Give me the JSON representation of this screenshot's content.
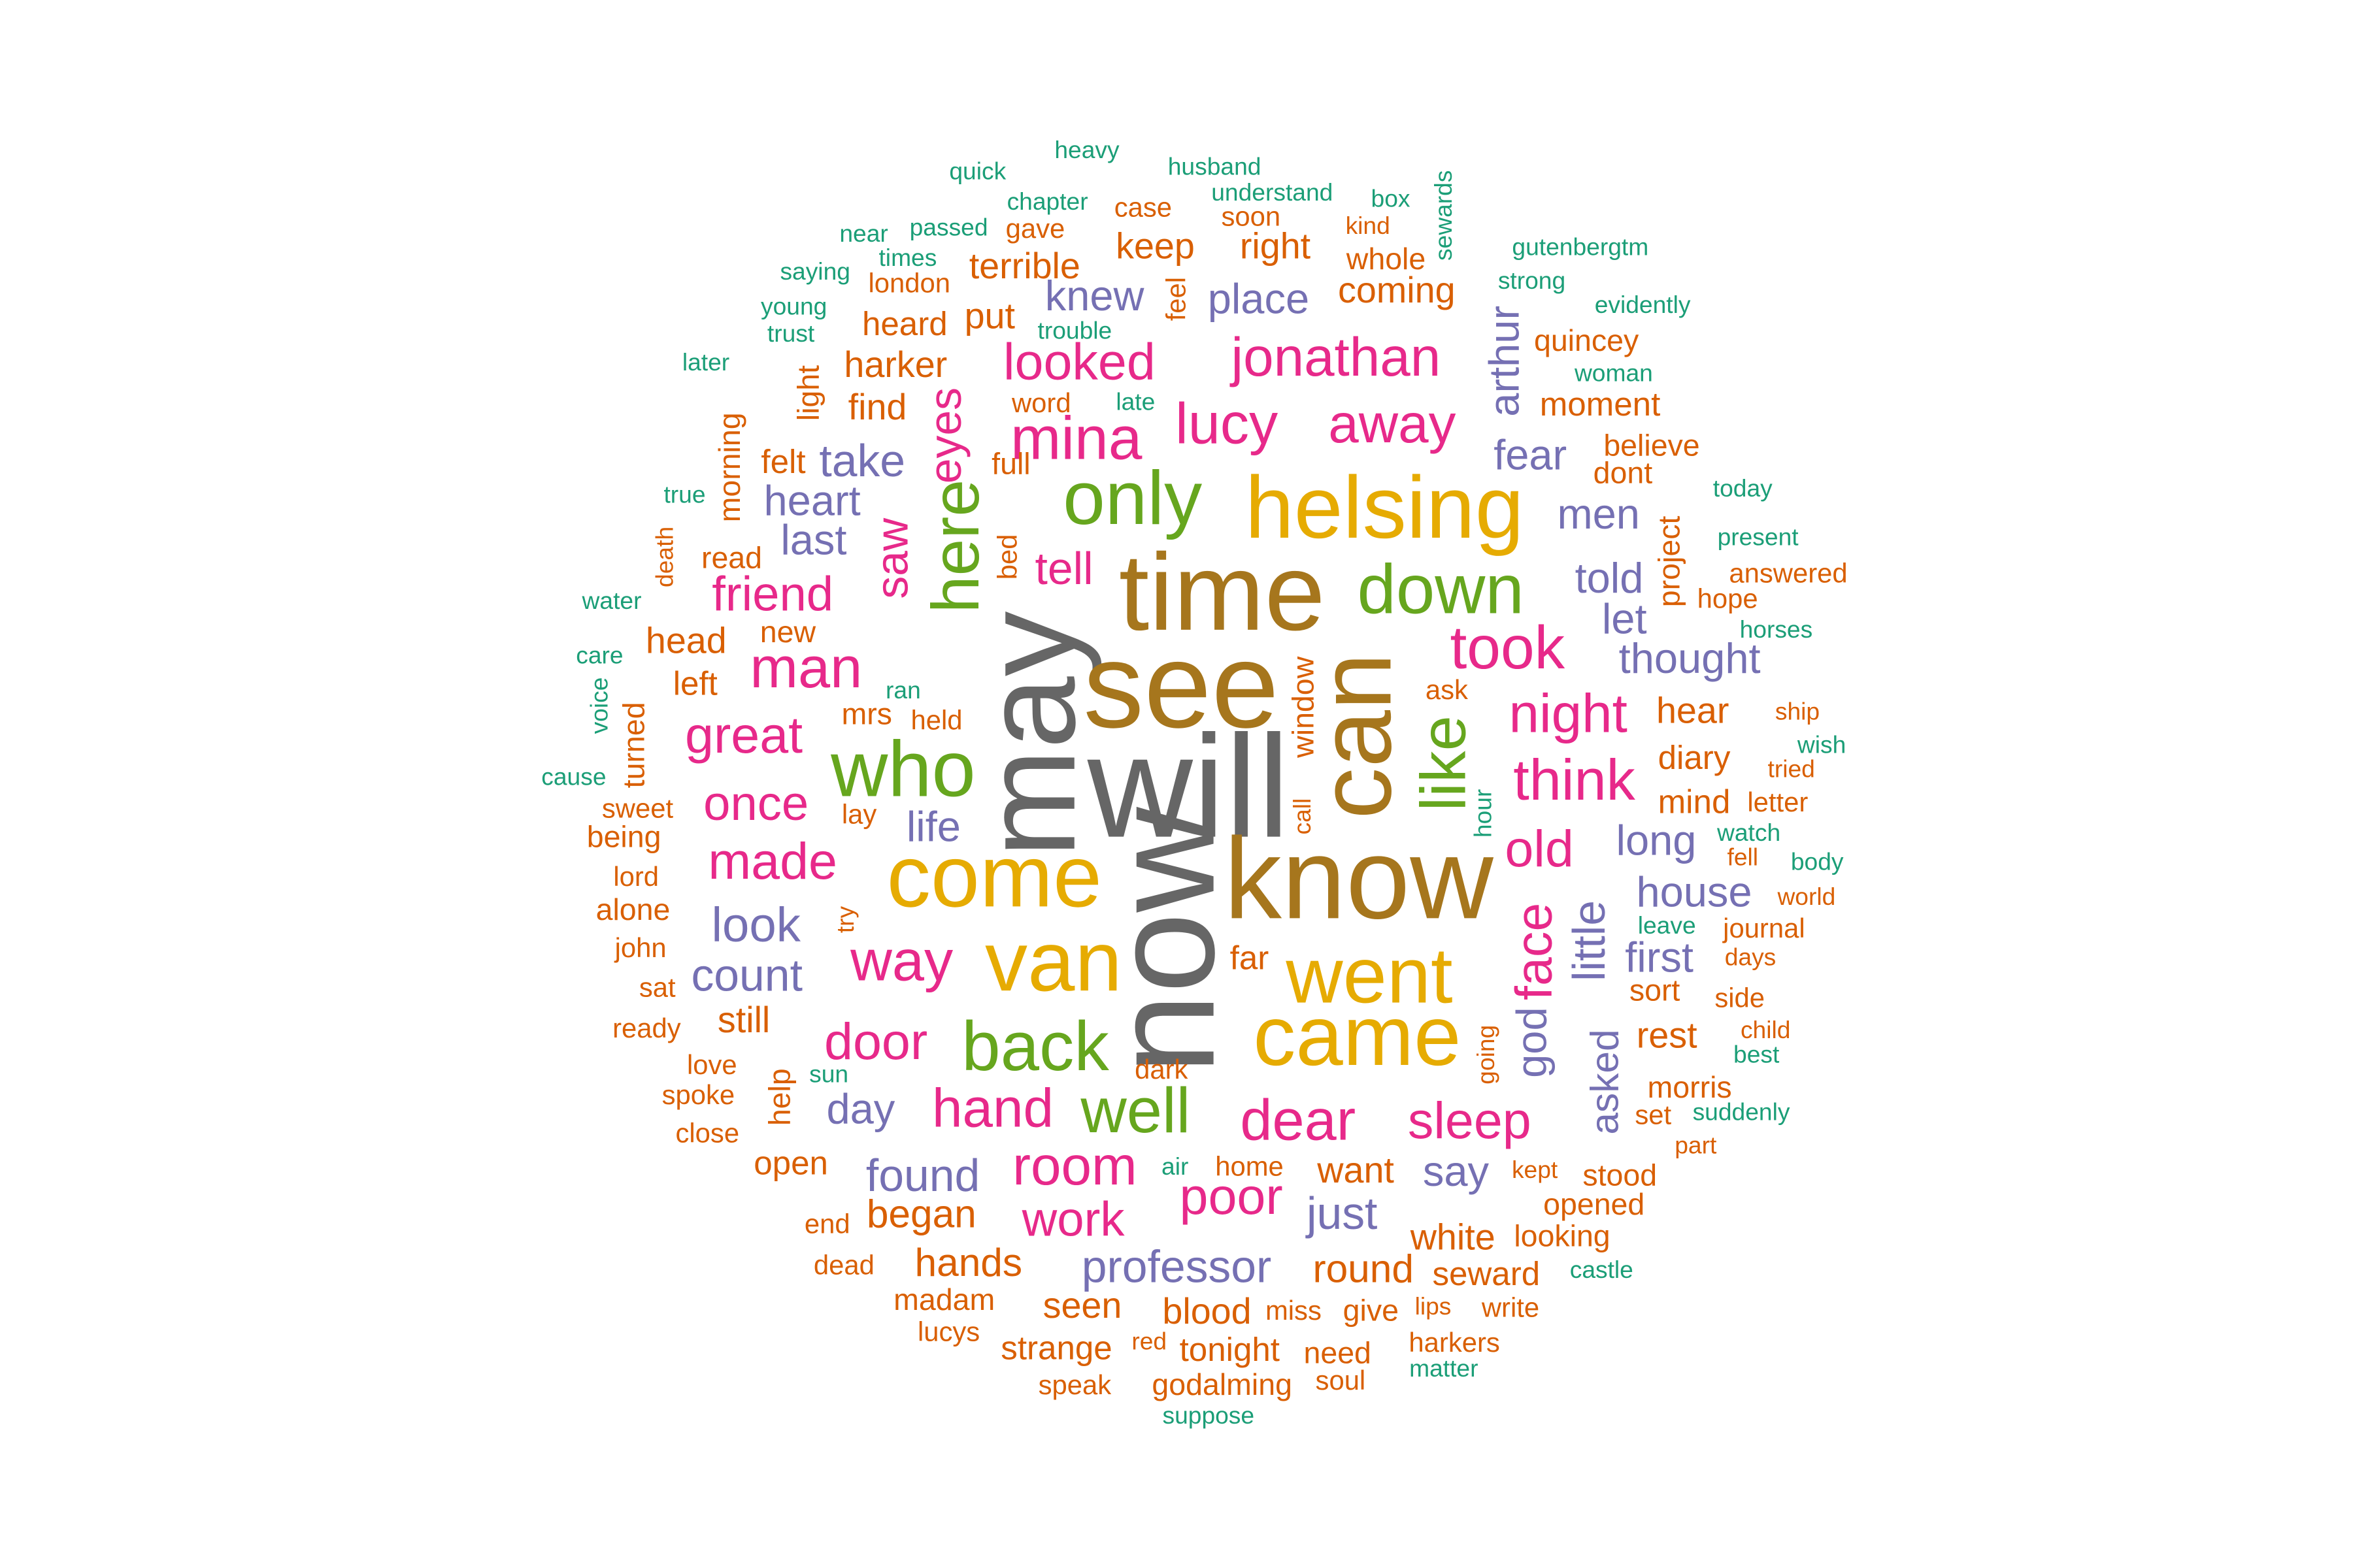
{
  "palette": {
    "gray": "#666666",
    "olive": "#a6761d",
    "gold": "#e6ab02",
    "green": "#66a61e",
    "pink": "#e7298a",
    "purple": "#7570b3",
    "orange": "#d95f02",
    "teal": "#1b9e77"
  },
  "words": [
    {
      "text": "will",
      "color": "gray"
    },
    {
      "text": "now",
      "color": "gray"
    },
    {
      "text": "may",
      "color": "gray"
    },
    {
      "text": "see",
      "color": "olive"
    },
    {
      "text": "know",
      "color": "olive"
    },
    {
      "text": "time",
      "color": "olive"
    },
    {
      "text": "can",
      "color": "olive"
    },
    {
      "text": "come",
      "color": "gold"
    },
    {
      "text": "van",
      "color": "gold"
    },
    {
      "text": "came",
      "color": "gold"
    },
    {
      "text": "helsing",
      "color": "gold"
    },
    {
      "text": "went",
      "color": "gold"
    },
    {
      "text": "who",
      "color": "green"
    },
    {
      "text": "back",
      "color": "green"
    },
    {
      "text": "only",
      "color": "green"
    },
    {
      "text": "down",
      "color": "green"
    },
    {
      "text": "like",
      "color": "green"
    },
    {
      "text": "well",
      "color": "green"
    },
    {
      "text": "here",
      "color": "green"
    },
    {
      "text": "mina",
      "color": "pink"
    },
    {
      "text": "lucy",
      "color": "pink"
    },
    {
      "text": "jonathan",
      "color": "pink"
    },
    {
      "text": "away",
      "color": "pink"
    },
    {
      "text": "looked",
      "color": "pink"
    },
    {
      "text": "eyes",
      "color": "pink"
    },
    {
      "text": "saw",
      "color": "pink"
    },
    {
      "text": "tell",
      "color": "pink"
    },
    {
      "text": "friend",
      "color": "pink"
    },
    {
      "text": "man",
      "color": "pink"
    },
    {
      "text": "took",
      "color": "pink"
    },
    {
      "text": "night",
      "color": "pink"
    },
    {
      "text": "think",
      "color": "pink"
    },
    {
      "text": "great",
      "color": "pink"
    },
    {
      "text": "once",
      "color": "pink"
    },
    {
      "text": "made",
      "color": "pink"
    },
    {
      "text": "old",
      "color": "pink"
    },
    {
      "text": "face",
      "color": "pink"
    },
    {
      "text": "way",
      "color": "pink"
    },
    {
      "text": "door",
      "color": "pink"
    },
    {
      "text": "hand",
      "color": "pink"
    },
    {
      "text": "dear",
      "color": "pink"
    },
    {
      "text": "sleep",
      "color": "pink"
    },
    {
      "text": "room",
      "color": "pink"
    },
    {
      "text": "poor",
      "color": "pink"
    },
    {
      "text": "work",
      "color": "pink"
    },
    {
      "text": "knew",
      "color": "purple"
    },
    {
      "text": "place",
      "color": "purple"
    },
    {
      "text": "arthur",
      "color": "purple"
    },
    {
      "text": "fear",
      "color": "purple"
    },
    {
      "text": "men",
      "color": "purple"
    },
    {
      "text": "take",
      "color": "purple"
    },
    {
      "text": "heart",
      "color": "purple"
    },
    {
      "text": "last",
      "color": "purple"
    },
    {
      "text": "told",
      "color": "purple"
    },
    {
      "text": "let",
      "color": "purple"
    },
    {
      "text": "thought",
      "color": "purple"
    },
    {
      "text": "life",
      "color": "purple"
    },
    {
      "text": "long",
      "color": "purple"
    },
    {
      "text": "house",
      "color": "purple"
    },
    {
      "text": "look",
      "color": "purple"
    },
    {
      "text": "count",
      "color": "purple"
    },
    {
      "text": "little",
      "color": "purple"
    },
    {
      "text": "first",
      "color": "purple"
    },
    {
      "text": "god",
      "color": "purple"
    },
    {
      "text": "asked",
      "color": "purple"
    },
    {
      "text": "day",
      "color": "purple"
    },
    {
      "text": "say",
      "color": "purple"
    },
    {
      "text": "found",
      "color": "purple"
    },
    {
      "text": "just",
      "color": "purple"
    },
    {
      "text": "professor",
      "color": "purple"
    },
    {
      "text": "case",
      "color": "orange"
    },
    {
      "text": "soon",
      "color": "orange"
    },
    {
      "text": "gave",
      "color": "orange"
    },
    {
      "text": "kind",
      "color": "orange"
    },
    {
      "text": "keep",
      "color": "orange"
    },
    {
      "text": "right",
      "color": "orange"
    },
    {
      "text": "whole",
      "color": "orange"
    },
    {
      "text": "terrible",
      "color": "orange"
    },
    {
      "text": "london",
      "color": "orange"
    },
    {
      "text": "coming",
      "color": "orange"
    },
    {
      "text": "feel",
      "color": "orange"
    },
    {
      "text": "put",
      "color": "orange"
    },
    {
      "text": "heard",
      "color": "orange"
    },
    {
      "text": "quincey",
      "color": "orange"
    },
    {
      "text": "harker",
      "color": "orange"
    },
    {
      "text": "word",
      "color": "orange"
    },
    {
      "text": "find",
      "color": "orange"
    },
    {
      "text": "moment",
      "color": "orange"
    },
    {
      "text": "morning",
      "color": "orange"
    },
    {
      "text": "felt",
      "color": "orange"
    },
    {
      "text": "believe",
      "color": "orange"
    },
    {
      "text": "full",
      "color": "orange"
    },
    {
      "text": "dont",
      "color": "orange"
    },
    {
      "text": "bed",
      "color": "orange"
    },
    {
      "text": "read",
      "color": "orange"
    },
    {
      "text": "project",
      "color": "orange"
    },
    {
      "text": "answered",
      "color": "orange"
    },
    {
      "text": "death",
      "color": "orange"
    },
    {
      "text": "hope",
      "color": "orange"
    },
    {
      "text": "new",
      "color": "orange"
    },
    {
      "text": "head",
      "color": "orange"
    },
    {
      "text": "window",
      "color": "orange"
    },
    {
      "text": "left",
      "color": "orange"
    },
    {
      "text": "ask",
      "color": "orange"
    },
    {
      "text": "hear",
      "color": "orange"
    },
    {
      "text": "mrs",
      "color": "orange"
    },
    {
      "text": "held",
      "color": "orange"
    },
    {
      "text": "ship",
      "color": "orange"
    },
    {
      "text": "turned",
      "color": "orange"
    },
    {
      "text": "diary",
      "color": "orange"
    },
    {
      "text": "sweet",
      "color": "orange"
    },
    {
      "text": "mind",
      "color": "orange"
    },
    {
      "text": "letter",
      "color": "orange"
    },
    {
      "text": "tried",
      "color": "orange"
    },
    {
      "text": "lay",
      "color": "orange"
    },
    {
      "text": "call",
      "color": "orange"
    },
    {
      "text": "being",
      "color": "orange"
    },
    {
      "text": "fell",
      "color": "orange"
    },
    {
      "text": "lord",
      "color": "orange"
    },
    {
      "text": "alone",
      "color": "orange"
    },
    {
      "text": "try",
      "color": "orange"
    },
    {
      "text": "world",
      "color": "orange"
    },
    {
      "text": "journal",
      "color": "orange"
    },
    {
      "text": "john",
      "color": "orange"
    },
    {
      "text": "far",
      "color": "orange"
    },
    {
      "text": "days",
      "color": "orange"
    },
    {
      "text": "sat",
      "color": "orange"
    },
    {
      "text": "still",
      "color": "orange"
    },
    {
      "text": "sort",
      "color": "orange"
    },
    {
      "text": "side",
      "color": "orange"
    },
    {
      "text": "ready",
      "color": "orange"
    },
    {
      "text": "rest",
      "color": "orange"
    },
    {
      "text": "child",
      "color": "orange"
    },
    {
      "text": "love",
      "color": "orange"
    },
    {
      "text": "going",
      "color": "orange"
    },
    {
      "text": "dark",
      "color": "orange"
    },
    {
      "text": "spoke",
      "color": "orange"
    },
    {
      "text": "help",
      "color": "orange"
    },
    {
      "text": "morris",
      "color": "orange"
    },
    {
      "text": "set",
      "color": "orange"
    },
    {
      "text": "close",
      "color": "orange"
    },
    {
      "text": "part",
      "color": "orange"
    },
    {
      "text": "home",
      "color": "orange"
    },
    {
      "text": "want",
      "color": "orange"
    },
    {
      "text": "kept",
      "color": "orange"
    },
    {
      "text": "stood",
      "color": "orange"
    },
    {
      "text": "open",
      "color": "orange"
    },
    {
      "text": "opened",
      "color": "orange"
    },
    {
      "text": "end",
      "color": "orange"
    },
    {
      "text": "began",
      "color": "orange"
    },
    {
      "text": "white",
      "color": "orange"
    },
    {
      "text": "looking",
      "color": "orange"
    },
    {
      "text": "dead",
      "color": "orange"
    },
    {
      "text": "hands",
      "color": "orange"
    },
    {
      "text": "round",
      "color": "orange"
    },
    {
      "text": "seward",
      "color": "orange"
    },
    {
      "text": "madam",
      "color": "orange"
    },
    {
      "text": "seen",
      "color": "orange"
    },
    {
      "text": "blood",
      "color": "orange"
    },
    {
      "text": "miss",
      "color": "orange"
    },
    {
      "text": "give",
      "color": "orange"
    },
    {
      "text": "lips",
      "color": "orange"
    },
    {
      "text": "write",
      "color": "orange"
    },
    {
      "text": "lucys",
      "color": "orange"
    },
    {
      "text": "strange",
      "color": "orange"
    },
    {
      "text": "red",
      "color": "orange"
    },
    {
      "text": "tonight",
      "color": "orange"
    },
    {
      "text": "need",
      "color": "orange"
    },
    {
      "text": "harkers",
      "color": "orange"
    },
    {
      "text": "speak",
      "color": "orange"
    },
    {
      "text": "godalming",
      "color": "orange"
    },
    {
      "text": "soul",
      "color": "orange"
    },
    {
      "text": "light",
      "color": "orange"
    },
    {
      "text": "heavy",
      "color": "teal"
    },
    {
      "text": "quick",
      "color": "teal"
    },
    {
      "text": "husband",
      "color": "teal"
    },
    {
      "text": "chapter",
      "color": "teal"
    },
    {
      "text": "understand",
      "color": "teal"
    },
    {
      "text": "box",
      "color": "teal"
    },
    {
      "text": "sewards",
      "color": "teal"
    },
    {
      "text": "near",
      "color": "teal"
    },
    {
      "text": "passed",
      "color": "teal"
    },
    {
      "text": "gutenbergtm",
      "color": "teal"
    },
    {
      "text": "times",
      "color": "teal"
    },
    {
      "text": "saying",
      "color": "teal"
    },
    {
      "text": "strong",
      "color": "teal"
    },
    {
      "text": "young",
      "color": "teal"
    },
    {
      "text": "evidently",
      "color": "teal"
    },
    {
      "text": "trust",
      "color": "teal"
    },
    {
      "text": "trouble",
      "color": "teal"
    },
    {
      "text": "later",
      "color": "teal"
    },
    {
      "text": "woman",
      "color": "teal"
    },
    {
      "text": "late",
      "color": "teal"
    },
    {
      "text": "true",
      "color": "teal"
    },
    {
      "text": "today",
      "color": "teal"
    },
    {
      "text": "present",
      "color": "teal"
    },
    {
      "text": "water",
      "color": "teal"
    },
    {
      "text": "horses",
      "color": "teal"
    },
    {
      "text": "care",
      "color": "teal"
    },
    {
      "text": "voice",
      "color": "teal"
    },
    {
      "text": "ran",
      "color": "teal"
    },
    {
      "text": "wish",
      "color": "teal"
    },
    {
      "text": "cause",
      "color": "teal"
    },
    {
      "text": "hour",
      "color": "teal"
    },
    {
      "text": "watch",
      "color": "teal"
    },
    {
      "text": "body",
      "color": "teal"
    },
    {
      "text": "leave",
      "color": "teal"
    },
    {
      "text": "best",
      "color": "teal"
    },
    {
      "text": "sun",
      "color": "teal"
    },
    {
      "text": "suddenly",
      "color": "teal"
    },
    {
      "text": "air",
      "color": "teal"
    },
    {
      "text": "castle",
      "color": "teal"
    },
    {
      "text": "matter",
      "color": "teal"
    },
    {
      "text": "suppose",
      "color": "teal"
    }
  ]
}
